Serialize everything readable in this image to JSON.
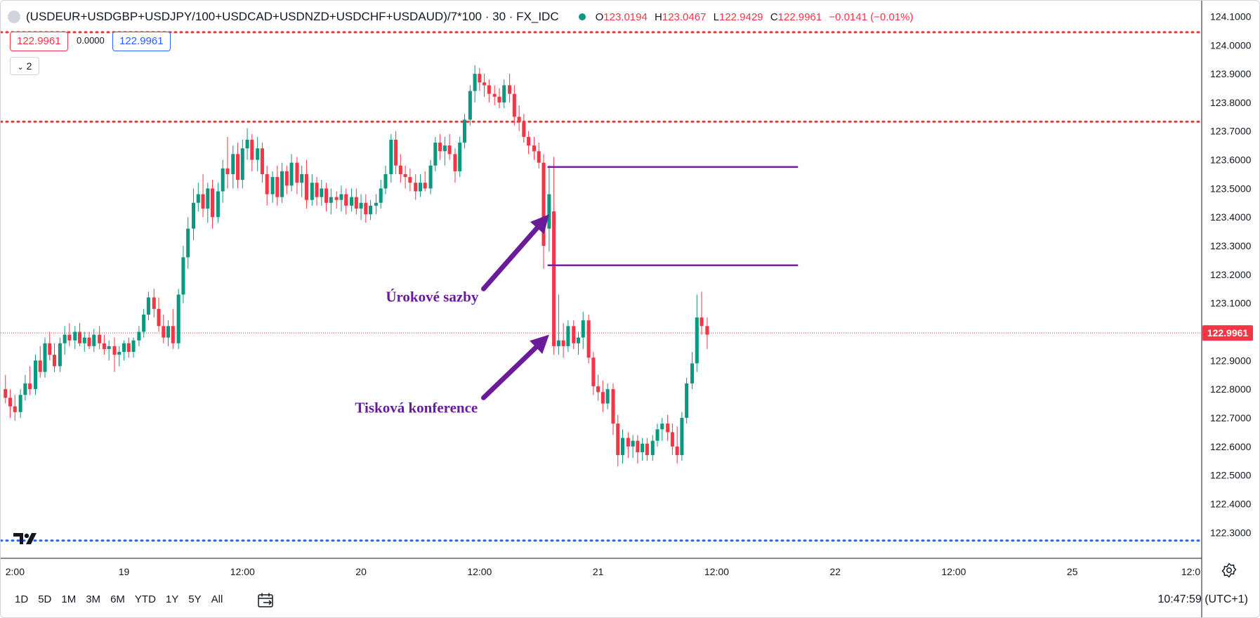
{
  "header": {
    "symbol": "(USDEUR+USDGBP+USDJPY/100+USDCAD+USDNZD+USDCHF+USDAUD)/7*100 · 30 · FX_IDC",
    "o_label": "O",
    "o_value": "123.0194",
    "h_label": "H",
    "h_value": "123.0467",
    "l_label": "L",
    "l_value": "122.9429",
    "c_label": "C",
    "c_value": "122.9961",
    "change": "−0.0141 (−0.01%)"
  },
  "toolbar": {
    "sell_price": "122.9961",
    "spread": "0.0000",
    "buy_price": "122.9961",
    "indicators_count": "2"
  },
  "bottom": {
    "ranges": [
      "1D",
      "5D",
      "1M",
      "3M",
      "6M",
      "YTD",
      "1Y",
      "5Y",
      "All"
    ],
    "clock": "10:47:59 (UTC+1)"
  },
  "colors": {
    "up": "#089981",
    "down": "#f23645",
    "annotation": "#6a1b9a",
    "red_level": "#e53935",
    "blue_level": "#2962ff"
  },
  "chart_data": {
    "type": "candlestick",
    "ylim": [
      122.21,
      124.155
    ],
    "y_ticks": [
      "124.1000",
      "124.0000",
      "123.9000",
      "123.8000",
      "123.7000",
      "123.6000",
      "123.5000",
      "123.4000",
      "123.3000",
      "123.2000",
      "123.1000",
      "123.0000",
      "122.9000",
      "122.8000",
      "122.7000",
      "122.6000",
      "122.5000",
      "122.4000",
      "122.3000"
    ],
    "x_ticks": [
      {
        "t": 0.0,
        "label": "2:00"
      },
      {
        "t": 1.5,
        "label": "19"
      },
      {
        "t": 3.0,
        "label": "12:00"
      },
      {
        "t": 4.5,
        "label": "20"
      },
      {
        "t": 6.0,
        "label": "12:00"
      },
      {
        "t": 7.5,
        "label": "21"
      },
      {
        "t": 9.0,
        "label": "12:00"
      },
      {
        "t": 10.5,
        "label": "22"
      },
      {
        "t": 12.0,
        "label": "12:00"
      },
      {
        "t": 13.5,
        "label": "25"
      },
      {
        "t": 15.0,
        "label": "12:0"
      }
    ],
    "x_range": [
      -0.06,
      15.12
    ],
    "candle_interval": 0.0625,
    "last_price": "122.9961",
    "last_value": 122.9961,
    "levels": [
      {
        "value": 124.045,
        "color": "red",
        "style": "dotted"
      },
      {
        "value": 123.733,
        "color": "red",
        "style": "dotted"
      },
      {
        "value": 122.272,
        "color": "blue",
        "style": "dotted"
      }
    ],
    "hlines": [
      {
        "value": 123.575,
        "t_start": 6.86,
        "t_end": 10.03
      },
      {
        "value": 123.232,
        "t_start": 6.86,
        "t_end": 10.03
      }
    ],
    "annotations": [
      {
        "text": "Úrokové sazby",
        "t": 5.4,
        "value": 123.105
      },
      {
        "text": "Tisková konference",
        "t": 5.2,
        "value": 122.718
      }
    ],
    "arrows": [
      {
        "t1": 6.05,
        "v1": 123.15,
        "t2": 6.88,
        "v2": 123.41
      },
      {
        "t1": 6.05,
        "v1": 122.77,
        "t2": 6.88,
        "v2": 122.99
      }
    ],
    "candles": [
      {
        "t": 0.0,
        "o": 122.8,
        "h": 122.85,
        "l": 122.75,
        "c": 122.77
      },
      {
        "t": 0.06,
        "o": 122.77,
        "h": 122.8,
        "l": 122.7,
        "c": 122.74
      },
      {
        "t": 0.12,
        "o": 122.74,
        "h": 122.78,
        "l": 122.69,
        "c": 122.72
      },
      {
        "t": 0.19,
        "o": 122.72,
        "h": 122.8,
        "l": 122.7,
        "c": 122.78
      },
      {
        "t": 0.25,
        "o": 122.78,
        "h": 122.85,
        "l": 122.76,
        "c": 122.82
      },
      {
        "t": 0.31,
        "o": 122.82,
        "h": 122.88,
        "l": 122.78,
        "c": 122.8
      },
      {
        "t": 0.38,
        "o": 122.8,
        "h": 122.92,
        "l": 122.78,
        "c": 122.9
      },
      {
        "t": 0.44,
        "o": 122.9,
        "h": 122.95,
        "l": 122.84,
        "c": 122.86
      },
      {
        "t": 0.5,
        "o": 122.86,
        "h": 122.98,
        "l": 122.84,
        "c": 122.96
      },
      {
        "t": 0.56,
        "o": 122.96,
        "h": 123.0,
        "l": 122.9,
        "c": 122.92
      },
      {
        "t": 0.62,
        "o": 122.92,
        "h": 122.96,
        "l": 122.86,
        "c": 122.88
      },
      {
        "t": 0.69,
        "o": 122.88,
        "h": 122.98,
        "l": 122.86,
        "c": 122.96
      },
      {
        "t": 0.75,
        "o": 122.96,
        "h": 123.02,
        "l": 122.92,
        "c": 122.99
      },
      {
        "t": 0.81,
        "o": 122.99,
        "h": 123.03,
        "l": 122.95,
        "c": 122.97
      },
      {
        "t": 0.88,
        "o": 122.97,
        "h": 123.02,
        "l": 122.94,
        "c": 123.0
      },
      {
        "t": 0.94,
        "o": 123.0,
        "h": 123.03,
        "l": 122.95,
        "c": 122.96
      },
      {
        "t": 1.0,
        "o": 122.96,
        "h": 123.0,
        "l": 122.93,
        "c": 122.98
      },
      {
        "t": 1.06,
        "o": 122.98,
        "h": 123.0,
        "l": 122.94,
        "c": 122.95
      },
      {
        "t": 1.12,
        "o": 122.95,
        "h": 123.01,
        "l": 122.93,
        "c": 122.99
      },
      {
        "t": 1.19,
        "o": 122.99,
        "h": 123.02,
        "l": 122.94,
        "c": 122.96
      },
      {
        "t": 1.25,
        "o": 122.96,
        "h": 122.99,
        "l": 122.92,
        "c": 122.94
      },
      {
        "t": 1.31,
        "o": 122.94,
        "h": 122.97,
        "l": 122.9,
        "c": 122.95
      },
      {
        "t": 1.38,
        "o": 122.95,
        "h": 122.98,
        "l": 122.86,
        "c": 122.92
      },
      {
        "t": 1.44,
        "o": 122.92,
        "h": 122.95,
        "l": 122.88,
        "c": 122.93
      },
      {
        "t": 1.5,
        "o": 122.93,
        "h": 122.97,
        "l": 122.9,
        "c": 122.96
      },
      {
        "t": 1.56,
        "o": 122.96,
        "h": 122.98,
        "l": 122.91,
        "c": 122.93
      },
      {
        "t": 1.62,
        "o": 122.93,
        "h": 122.98,
        "l": 122.91,
        "c": 122.97
      },
      {
        "t": 1.69,
        "o": 122.97,
        "h": 123.02,
        "l": 122.95,
        "c": 123.0
      },
      {
        "t": 1.75,
        "o": 123.0,
        "h": 123.08,
        "l": 122.98,
        "c": 123.06
      },
      {
        "t": 1.81,
        "o": 123.06,
        "h": 123.14,
        "l": 123.04,
        "c": 123.12
      },
      {
        "t": 1.88,
        "o": 123.12,
        "h": 123.15,
        "l": 123.05,
        "c": 123.08
      },
      {
        "t": 1.94,
        "o": 123.08,
        "h": 123.12,
        "l": 123.0,
        "c": 123.02
      },
      {
        "t": 2.0,
        "o": 123.02,
        "h": 123.06,
        "l": 122.96,
        "c": 122.98
      },
      {
        "t": 2.06,
        "o": 122.98,
        "h": 123.04,
        "l": 122.95,
        "c": 123.02
      },
      {
        "t": 2.12,
        "o": 123.02,
        "h": 123.08,
        "l": 122.94,
        "c": 122.96
      },
      {
        "t": 2.19,
        "o": 122.96,
        "h": 123.15,
        "l": 122.94,
        "c": 123.13
      },
      {
        "t": 2.25,
        "o": 123.13,
        "h": 123.3,
        "l": 123.1,
        "c": 123.26
      },
      {
        "t": 2.31,
        "o": 123.26,
        "h": 123.4,
        "l": 123.22,
        "c": 123.36
      },
      {
        "t": 2.38,
        "o": 123.36,
        "h": 123.5,
        "l": 123.32,
        "c": 123.45
      },
      {
        "t": 2.44,
        "o": 123.45,
        "h": 123.52,
        "l": 123.42,
        "c": 123.48
      },
      {
        "t": 2.5,
        "o": 123.48,
        "h": 123.55,
        "l": 123.4,
        "c": 123.43
      },
      {
        "t": 2.56,
        "o": 123.43,
        "h": 123.52,
        "l": 123.38,
        "c": 123.5
      },
      {
        "t": 2.62,
        "o": 123.5,
        "h": 123.53,
        "l": 123.36,
        "c": 123.4
      },
      {
        "t": 2.69,
        "o": 123.4,
        "h": 123.52,
        "l": 123.38,
        "c": 123.49
      },
      {
        "t": 2.75,
        "o": 123.49,
        "h": 123.6,
        "l": 123.45,
        "c": 123.57
      },
      {
        "t": 2.81,
        "o": 123.57,
        "h": 123.68,
        "l": 123.5,
        "c": 123.55
      },
      {
        "t": 2.88,
        "o": 123.55,
        "h": 123.65,
        "l": 123.5,
        "c": 123.62
      },
      {
        "t": 2.94,
        "o": 123.62,
        "h": 123.66,
        "l": 123.5,
        "c": 123.53
      },
      {
        "t": 3.0,
        "o": 123.53,
        "h": 123.67,
        "l": 123.5,
        "c": 123.64
      },
      {
        "t": 3.06,
        "o": 123.64,
        "h": 123.71,
        "l": 123.6,
        "c": 123.67
      },
      {
        "t": 3.12,
        "o": 123.67,
        "h": 123.69,
        "l": 123.56,
        "c": 123.6
      },
      {
        "t": 3.19,
        "o": 123.6,
        "h": 123.68,
        "l": 123.56,
        "c": 123.64
      },
      {
        "t": 3.25,
        "o": 123.64,
        "h": 123.66,
        "l": 123.52,
        "c": 123.55
      },
      {
        "t": 3.31,
        "o": 123.55,
        "h": 123.58,
        "l": 123.44,
        "c": 123.48
      },
      {
        "t": 3.38,
        "o": 123.48,
        "h": 123.56,
        "l": 123.45,
        "c": 123.54
      },
      {
        "t": 3.44,
        "o": 123.54,
        "h": 123.58,
        "l": 123.44,
        "c": 123.47
      },
      {
        "t": 3.5,
        "o": 123.47,
        "h": 123.59,
        "l": 123.45,
        "c": 123.56
      },
      {
        "t": 3.56,
        "o": 123.56,
        "h": 123.58,
        "l": 123.48,
        "c": 123.51
      },
      {
        "t": 3.62,
        "o": 123.51,
        "h": 123.62,
        "l": 123.49,
        "c": 123.59
      },
      {
        "t": 3.69,
        "o": 123.59,
        "h": 123.61,
        "l": 123.48,
        "c": 123.52
      },
      {
        "t": 3.75,
        "o": 123.52,
        "h": 123.58,
        "l": 123.47,
        "c": 123.55
      },
      {
        "t": 3.81,
        "o": 123.55,
        "h": 123.6,
        "l": 123.43,
        "c": 123.46
      },
      {
        "t": 3.88,
        "o": 123.46,
        "h": 123.55,
        "l": 123.44,
        "c": 123.52
      },
      {
        "t": 3.94,
        "o": 123.52,
        "h": 123.54,
        "l": 123.44,
        "c": 123.47
      },
      {
        "t": 4.0,
        "o": 123.47,
        "h": 123.53,
        "l": 123.44,
        "c": 123.5
      },
      {
        "t": 4.06,
        "o": 123.5,
        "h": 123.52,
        "l": 123.42,
        "c": 123.45
      },
      {
        "t": 4.12,
        "o": 123.45,
        "h": 123.5,
        "l": 123.41,
        "c": 123.47
      },
      {
        "t": 4.19,
        "o": 123.47,
        "h": 123.49,
        "l": 123.43,
        "c": 123.46
      },
      {
        "t": 4.25,
        "o": 123.46,
        "h": 123.51,
        "l": 123.42,
        "c": 123.48
      },
      {
        "t": 4.31,
        "o": 123.48,
        "h": 123.5,
        "l": 123.41,
        "c": 123.44
      },
      {
        "t": 4.38,
        "o": 123.44,
        "h": 123.5,
        "l": 123.42,
        "c": 123.47
      },
      {
        "t": 4.44,
        "o": 123.47,
        "h": 123.5,
        "l": 123.41,
        "c": 123.43
      },
      {
        "t": 4.5,
        "o": 123.43,
        "h": 123.48,
        "l": 123.39,
        "c": 123.45
      },
      {
        "t": 4.56,
        "o": 123.45,
        "h": 123.48,
        "l": 123.38,
        "c": 123.41
      },
      {
        "t": 4.62,
        "o": 123.41,
        "h": 123.46,
        "l": 123.39,
        "c": 123.44
      },
      {
        "t": 4.69,
        "o": 123.44,
        "h": 123.48,
        "l": 123.41,
        "c": 123.45
      },
      {
        "t": 4.75,
        "o": 123.45,
        "h": 123.53,
        "l": 123.43,
        "c": 123.5
      },
      {
        "t": 4.81,
        "o": 123.5,
        "h": 123.58,
        "l": 123.48,
        "c": 123.55
      },
      {
        "t": 4.88,
        "o": 123.55,
        "h": 123.69,
        "l": 123.52,
        "c": 123.67
      },
      {
        "t": 4.94,
        "o": 123.67,
        "h": 123.7,
        "l": 123.55,
        "c": 123.58
      },
      {
        "t": 5.0,
        "o": 123.58,
        "h": 123.62,
        "l": 123.52,
        "c": 123.55
      },
      {
        "t": 5.06,
        "o": 123.55,
        "h": 123.58,
        "l": 123.5,
        "c": 123.54
      },
      {
        "t": 5.12,
        "o": 123.54,
        "h": 123.57,
        "l": 123.49,
        "c": 123.52
      },
      {
        "t": 5.19,
        "o": 123.52,
        "h": 123.55,
        "l": 123.46,
        "c": 123.49
      },
      {
        "t": 5.25,
        "o": 123.49,
        "h": 123.55,
        "l": 123.47,
        "c": 123.52
      },
      {
        "t": 5.31,
        "o": 123.52,
        "h": 123.56,
        "l": 123.49,
        "c": 123.5
      },
      {
        "t": 5.38,
        "o": 123.5,
        "h": 123.6,
        "l": 123.48,
        "c": 123.58
      },
      {
        "t": 5.44,
        "o": 123.58,
        "h": 123.68,
        "l": 123.56,
        "c": 123.66
      },
      {
        "t": 5.5,
        "o": 123.66,
        "h": 123.69,
        "l": 123.6,
        "c": 123.63
      },
      {
        "t": 5.56,
        "o": 123.63,
        "h": 123.68,
        "l": 123.58,
        "c": 123.65
      },
      {
        "t": 5.62,
        "o": 123.65,
        "h": 123.69,
        "l": 123.6,
        "c": 123.62
      },
      {
        "t": 5.69,
        "o": 123.62,
        "h": 123.64,
        "l": 123.52,
        "c": 123.56
      },
      {
        "t": 5.75,
        "o": 123.56,
        "h": 123.68,
        "l": 123.54,
        "c": 123.66
      },
      {
        "t": 5.81,
        "o": 123.66,
        "h": 123.76,
        "l": 123.64,
        "c": 123.74
      },
      {
        "t": 5.88,
        "o": 123.74,
        "h": 123.86,
        "l": 123.72,
        "c": 123.84
      },
      {
        "t": 5.94,
        "o": 123.84,
        "h": 123.93,
        "l": 123.8,
        "c": 123.9
      },
      {
        "t": 6.0,
        "o": 123.9,
        "h": 123.92,
        "l": 123.84,
        "c": 123.87
      },
      {
        "t": 6.06,
        "o": 123.87,
        "h": 123.9,
        "l": 123.82,
        "c": 123.86
      },
      {
        "t": 6.12,
        "o": 123.86,
        "h": 123.88,
        "l": 123.8,
        "c": 123.83
      },
      {
        "t": 6.19,
        "o": 123.83,
        "h": 123.86,
        "l": 123.79,
        "c": 123.82
      },
      {
        "t": 6.25,
        "o": 123.82,
        "h": 123.85,
        "l": 123.78,
        "c": 123.8
      },
      {
        "t": 6.31,
        "o": 123.8,
        "h": 123.88,
        "l": 123.78,
        "c": 123.86
      },
      {
        "t": 6.38,
        "o": 123.86,
        "h": 123.9,
        "l": 123.8,
        "c": 123.83
      },
      {
        "t": 6.44,
        "o": 123.83,
        "h": 123.86,
        "l": 123.72,
        "c": 123.75
      },
      {
        "t": 6.5,
        "o": 123.75,
        "h": 123.79,
        "l": 123.7,
        "c": 123.73
      },
      {
        "t": 6.56,
        "o": 123.73,
        "h": 123.76,
        "l": 123.66,
        "c": 123.68
      },
      {
        "t": 6.62,
        "o": 123.68,
        "h": 123.7,
        "l": 123.62,
        "c": 123.65
      },
      {
        "t": 6.69,
        "o": 123.65,
        "h": 123.68,
        "l": 123.6,
        "c": 123.63
      },
      {
        "t": 6.75,
        "o": 123.63,
        "h": 123.66,
        "l": 123.57,
        "c": 123.59
      },
      {
        "t": 6.81,
        "o": 123.59,
        "h": 123.62,
        "l": 123.22,
        "c": 123.3
      },
      {
        "t": 6.88,
        "o": 123.36,
        "h": 123.58,
        "l": 123.28,
        "c": 123.48
      },
      {
        "t": 6.94,
        "o": 123.42,
        "h": 123.61,
        "l": 122.92,
        "c": 122.95
      },
      {
        "t": 7.0,
        "o": 122.95,
        "h": 123.13,
        "l": 122.92,
        "c": 122.97
      },
      {
        "t": 7.06,
        "o": 122.97,
        "h": 123.03,
        "l": 122.91,
        "c": 122.95
      },
      {
        "t": 7.12,
        "o": 122.95,
        "h": 123.04,
        "l": 122.93,
        "c": 123.02
      },
      {
        "t": 7.19,
        "o": 123.02,
        "h": 123.04,
        "l": 122.94,
        "c": 122.96
      },
      {
        "t": 7.25,
        "o": 122.96,
        "h": 123.0,
        "l": 122.92,
        "c": 122.98
      },
      {
        "t": 7.31,
        "o": 122.98,
        "h": 123.07,
        "l": 122.94,
        "c": 123.04
      },
      {
        "t": 7.38,
        "o": 123.04,
        "h": 123.06,
        "l": 122.89,
        "c": 122.91
      },
      {
        "t": 7.44,
        "o": 122.91,
        "h": 122.93,
        "l": 122.78,
        "c": 122.81
      },
      {
        "t": 7.5,
        "o": 122.81,
        "h": 122.85,
        "l": 122.76,
        "c": 122.79
      },
      {
        "t": 7.56,
        "o": 122.79,
        "h": 122.83,
        "l": 122.72,
        "c": 122.75
      },
      {
        "t": 7.62,
        "o": 122.75,
        "h": 122.82,
        "l": 122.73,
        "c": 122.8
      },
      {
        "t": 7.69,
        "o": 122.8,
        "h": 122.82,
        "l": 122.64,
        "c": 122.68
      },
      {
        "t": 7.75,
        "o": 122.68,
        "h": 122.71,
        "l": 122.53,
        "c": 122.57
      },
      {
        "t": 7.81,
        "o": 122.57,
        "h": 122.66,
        "l": 122.54,
        "c": 122.63
      },
      {
        "t": 7.88,
        "o": 122.63,
        "h": 122.65,
        "l": 122.56,
        "c": 122.6
      },
      {
        "t": 7.94,
        "o": 122.6,
        "h": 122.64,
        "l": 122.56,
        "c": 122.62
      },
      {
        "t": 8.0,
        "o": 122.62,
        "h": 122.64,
        "l": 122.54,
        "c": 122.58
      },
      {
        "t": 8.06,
        "o": 122.58,
        "h": 122.63,
        "l": 122.55,
        "c": 122.61
      },
      {
        "t": 8.12,
        "o": 122.61,
        "h": 122.63,
        "l": 122.55,
        "c": 122.57
      },
      {
        "t": 8.19,
        "o": 122.57,
        "h": 122.64,
        "l": 122.55,
        "c": 122.62
      },
      {
        "t": 8.25,
        "o": 122.62,
        "h": 122.68,
        "l": 122.6,
        "c": 122.66
      },
      {
        "t": 8.31,
        "o": 122.66,
        "h": 122.7,
        "l": 122.62,
        "c": 122.68
      },
      {
        "t": 8.38,
        "o": 122.68,
        "h": 122.71,
        "l": 122.62,
        "c": 122.65
      },
      {
        "t": 8.44,
        "o": 122.65,
        "h": 122.68,
        "l": 122.57,
        "c": 122.6
      },
      {
        "t": 8.5,
        "o": 122.6,
        "h": 122.67,
        "l": 122.54,
        "c": 122.57
      },
      {
        "t": 8.56,
        "o": 122.57,
        "h": 122.72,
        "l": 122.55,
        "c": 122.7
      },
      {
        "t": 8.62,
        "o": 122.7,
        "h": 122.84,
        "l": 122.68,
        "c": 122.82
      },
      {
        "t": 8.69,
        "o": 122.82,
        "h": 122.93,
        "l": 122.8,
        "c": 122.89
      },
      {
        "t": 8.75,
        "o": 122.89,
        "h": 123.13,
        "l": 122.86,
        "c": 123.05
      },
      {
        "t": 8.81,
        "o": 123.05,
        "h": 123.14,
        "l": 122.99,
        "c": 123.02
      },
      {
        "t": 8.88,
        "o": 123.02,
        "h": 123.05,
        "l": 122.94,
        "c": 122.99
      }
    ]
  }
}
